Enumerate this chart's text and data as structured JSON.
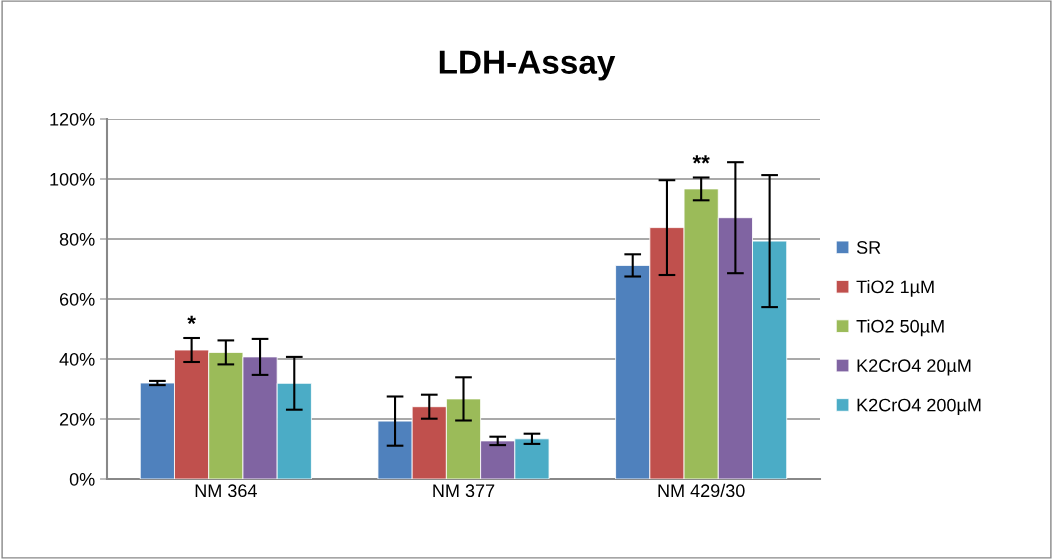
{
  "chart_data": {
    "type": "bar",
    "title": "LDH-Assay",
    "categories": [
      "NM 364",
      "NM 377",
      "NM 429/30"
    ],
    "series": [
      {
        "name": "SR",
        "color": "#4f81bd",
        "values": [
          32,
          19.3,
          71.2
        ],
        "errors": [
          0.7,
          8.2,
          3.7
        ]
      },
      {
        "name": "TiO2 1µM",
        "color": "#c0504d",
        "values": [
          43,
          24.1,
          83.8
        ],
        "errors": [
          4,
          4,
          15.8
        ]
      },
      {
        "name": "TiO2 50µM",
        "color": "#9bbb59",
        "values": [
          42.2,
          26.7,
          96.7
        ],
        "errors": [
          4,
          7.2,
          3.8
        ]
      },
      {
        "name": "K2CrO4 20µM",
        "color": "#8064a2",
        "values": [
          40.7,
          12.7,
          87.1
        ],
        "errors": [
          6,
          1.4,
          18.5
        ]
      },
      {
        "name": "K2CrO4 200µM",
        "color": "#4bacc6",
        "values": [
          31.9,
          13.4,
          79.3
        ],
        "errors": [
          8.8,
          1.7,
          22
        ]
      }
    ],
    "ylim": [
      0,
      120
    ],
    "yticks": [
      {
        "value": 0,
        "label": "0%"
      },
      {
        "value": 20,
        "label": "20%"
      },
      {
        "value": 40,
        "label": "40%"
      },
      {
        "value": 60,
        "label": "60%"
      },
      {
        "value": 80,
        "label": "80%"
      },
      {
        "value": 100,
        "label": "100%"
      },
      {
        "value": 120,
        "label": "120%"
      }
    ],
    "grid": "y",
    "legend": "right",
    "annotations": [
      {
        "text": "*",
        "x": "NM 364",
        "y": 47
      },
      {
        "text": "**",
        "x": "NM 429/30",
        "y": 100.5
      }
    ]
  }
}
